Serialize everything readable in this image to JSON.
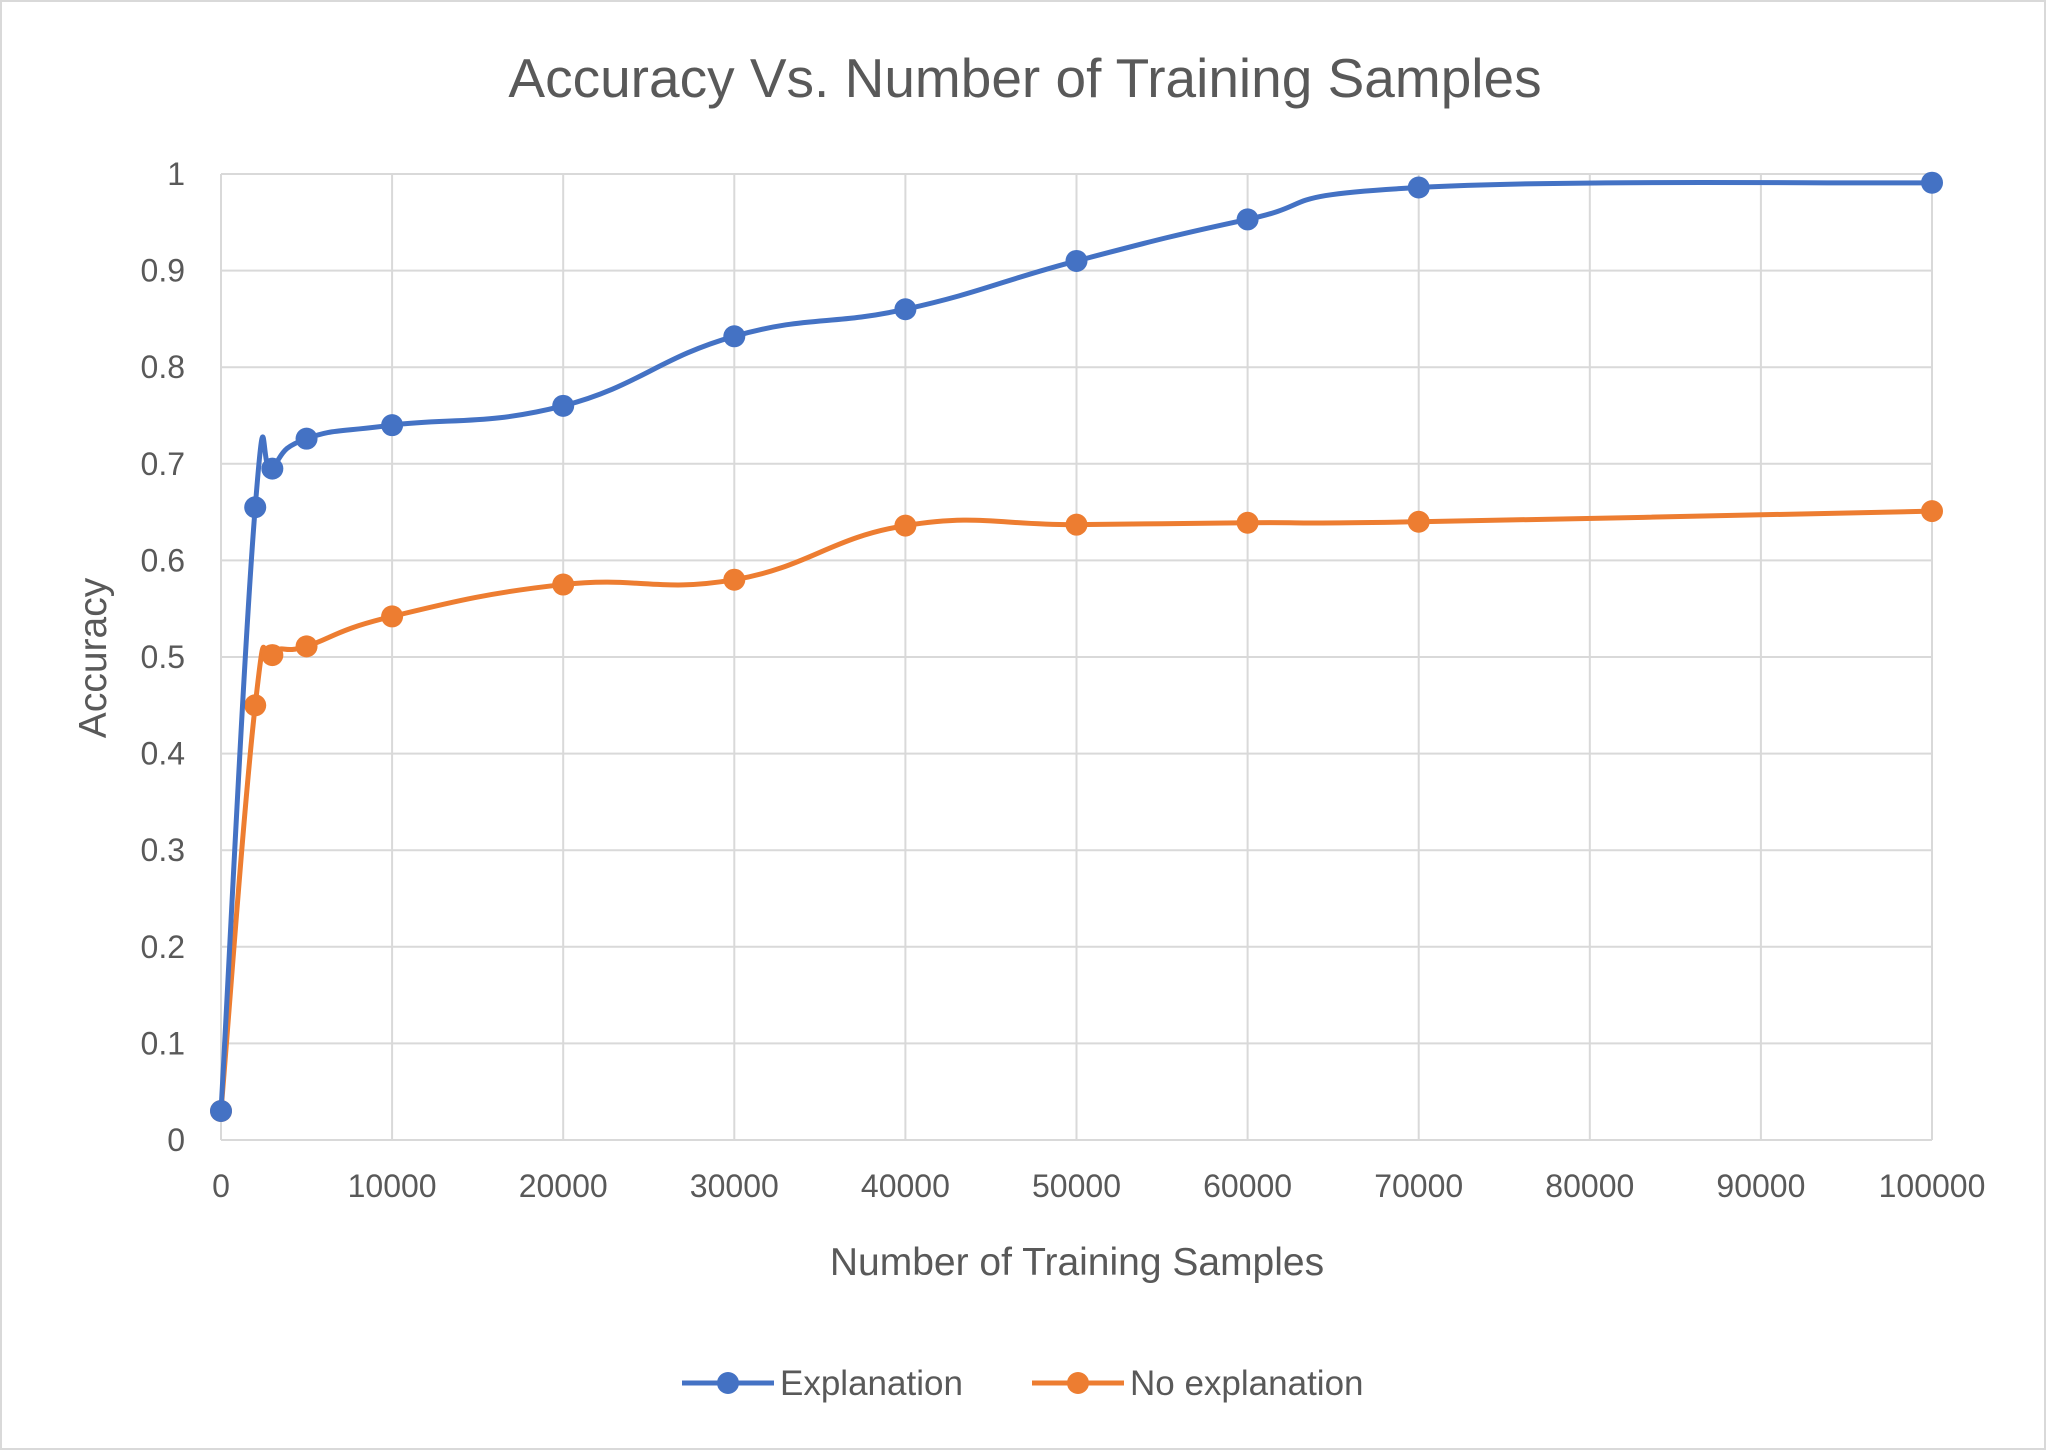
{
  "chart_data": {
    "type": "line",
    "title": "Accuracy Vs. Number of Training Samples",
    "xlabel": "Number of Training Samples",
    "ylabel": "Accuracy",
    "xlim": [
      0,
      100000
    ],
    "ylim": [
      0,
      1
    ],
    "x_ticks": [
      "0",
      "10000",
      "20000",
      "30000",
      "40000",
      "50000",
      "60000",
      "70000",
      "80000",
      "90000",
      "100000"
    ],
    "y_ticks": [
      "0",
      "0.1",
      "0.2",
      "0.3",
      "0.4",
      "0.5",
      "0.6",
      "0.7",
      "0.8",
      "0.9",
      "1"
    ],
    "grid": true,
    "smooth": true,
    "legend_position": "bottom",
    "series": [
      {
        "name": "Explanation",
        "color": "#4472c4",
        "points": [
          {
            "x": 0,
            "y": 0.03
          },
          {
            "x": 2000,
            "y": 0.655
          },
          {
            "x": 3000,
            "y": 0.695
          },
          {
            "x": 5000,
            "y": 0.726
          },
          {
            "x": 10000,
            "y": 0.74
          },
          {
            "x": 20000,
            "y": 0.76
          },
          {
            "x": 30000,
            "y": 0.832
          },
          {
            "x": 40000,
            "y": 0.86
          },
          {
            "x": 50000,
            "y": 0.91
          },
          {
            "x": 60000,
            "y": 0.953
          },
          {
            "x": 70000,
            "y": 0.986
          },
          {
            "x": 100000,
            "y": 0.991
          }
        ]
      },
      {
        "name": "No explanation",
        "color": "#ed7d31",
        "points": [
          {
            "x": 0,
            "y": 0.03
          },
          {
            "x": 2000,
            "y": 0.45
          },
          {
            "x": 3000,
            "y": 0.502
          },
          {
            "x": 5000,
            "y": 0.511
          },
          {
            "x": 10000,
            "y": 0.542
          },
          {
            "x": 20000,
            "y": 0.575
          },
          {
            "x": 30000,
            "y": 0.58
          },
          {
            "x": 40000,
            "y": 0.636
          },
          {
            "x": 50000,
            "y": 0.637
          },
          {
            "x": 60000,
            "y": 0.639
          },
          {
            "x": 70000,
            "y": 0.64
          },
          {
            "x": 100000,
            "y": 0.651
          }
        ]
      }
    ]
  }
}
